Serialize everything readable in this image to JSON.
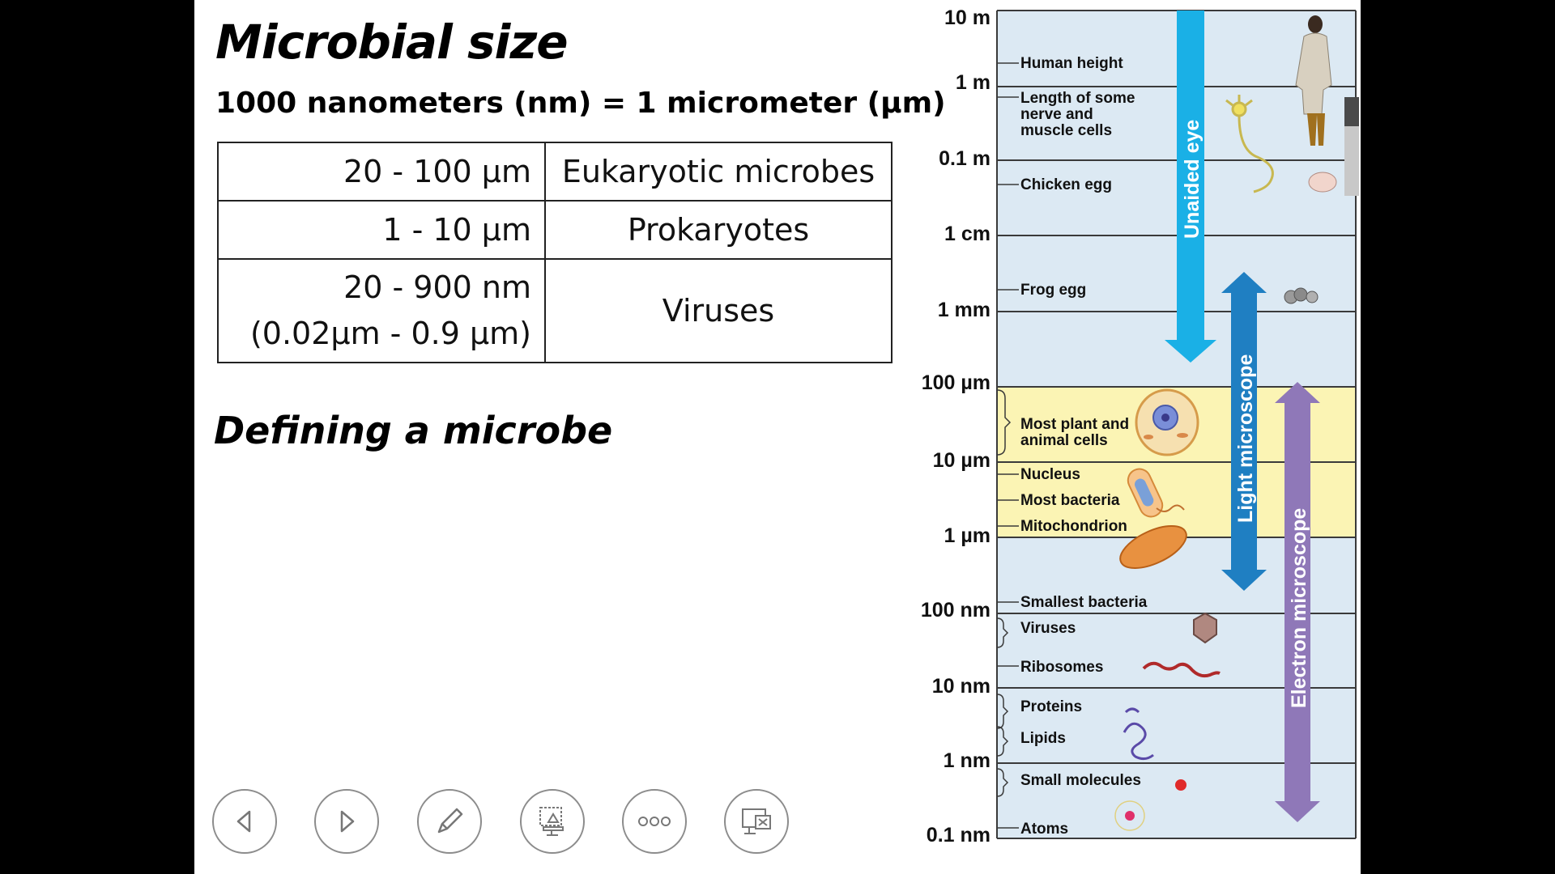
{
  "slide": {
    "title": "Microbial size",
    "subtitle": "1000 nanometers (nm) = 1 micrometer (µm)",
    "table": [
      {
        "range_line1": "20 - 100 µm",
        "range_line2": "",
        "kind": "Eukaryotic microbes"
      },
      {
        "range_line1": "1 - 10 µm",
        "range_line2": "",
        "kind": "Prokaryotes"
      },
      {
        "range_line1": "20 - 900 nm",
        "range_line2": "(0.02µm - 0.9 µm)",
        "kind": "Viruses"
      }
    ],
    "heading2": "Defining a microbe"
  },
  "scale": {
    "ticks": [
      "10 m",
      "1 m",
      "0.1 m",
      "1 cm",
      "1 mm",
      "100 µm",
      "10 µm",
      "1 µm",
      "100 nm",
      "10 nm",
      "1 nm",
      "0.1 nm"
    ],
    "items": [
      "Human height",
      "Length of some",
      "nerve and",
      "muscle cells",
      "Chicken egg",
      "Frog egg",
      "Most plant and",
      "animal cells",
      "Nucleus",
      "Most bacteria",
      "Mitochondrion",
      "Smallest bacteria",
      "Viruses",
      "Ribosomes",
      "Proteins",
      "Lipids",
      "Small molecules",
      "Atoms"
    ],
    "arrows": {
      "eye": "Unaided eye",
      "light": "Light microscope",
      "electron": "Electron microscope"
    },
    "colors": {
      "band_blue": "#dce9f3",
      "band_yellow": "#fbf4b4",
      "eye_arrow": "#1ab0e6",
      "light_arrow": "#1f7fc2",
      "electron_arrow": "#8f78b8"
    }
  },
  "toolbar": {
    "icons": [
      "previous-slide-icon",
      "next-slide-icon",
      "pen-icon",
      "slide-sorter-icon",
      "more-options-icon",
      "end-show-icon"
    ]
  }
}
